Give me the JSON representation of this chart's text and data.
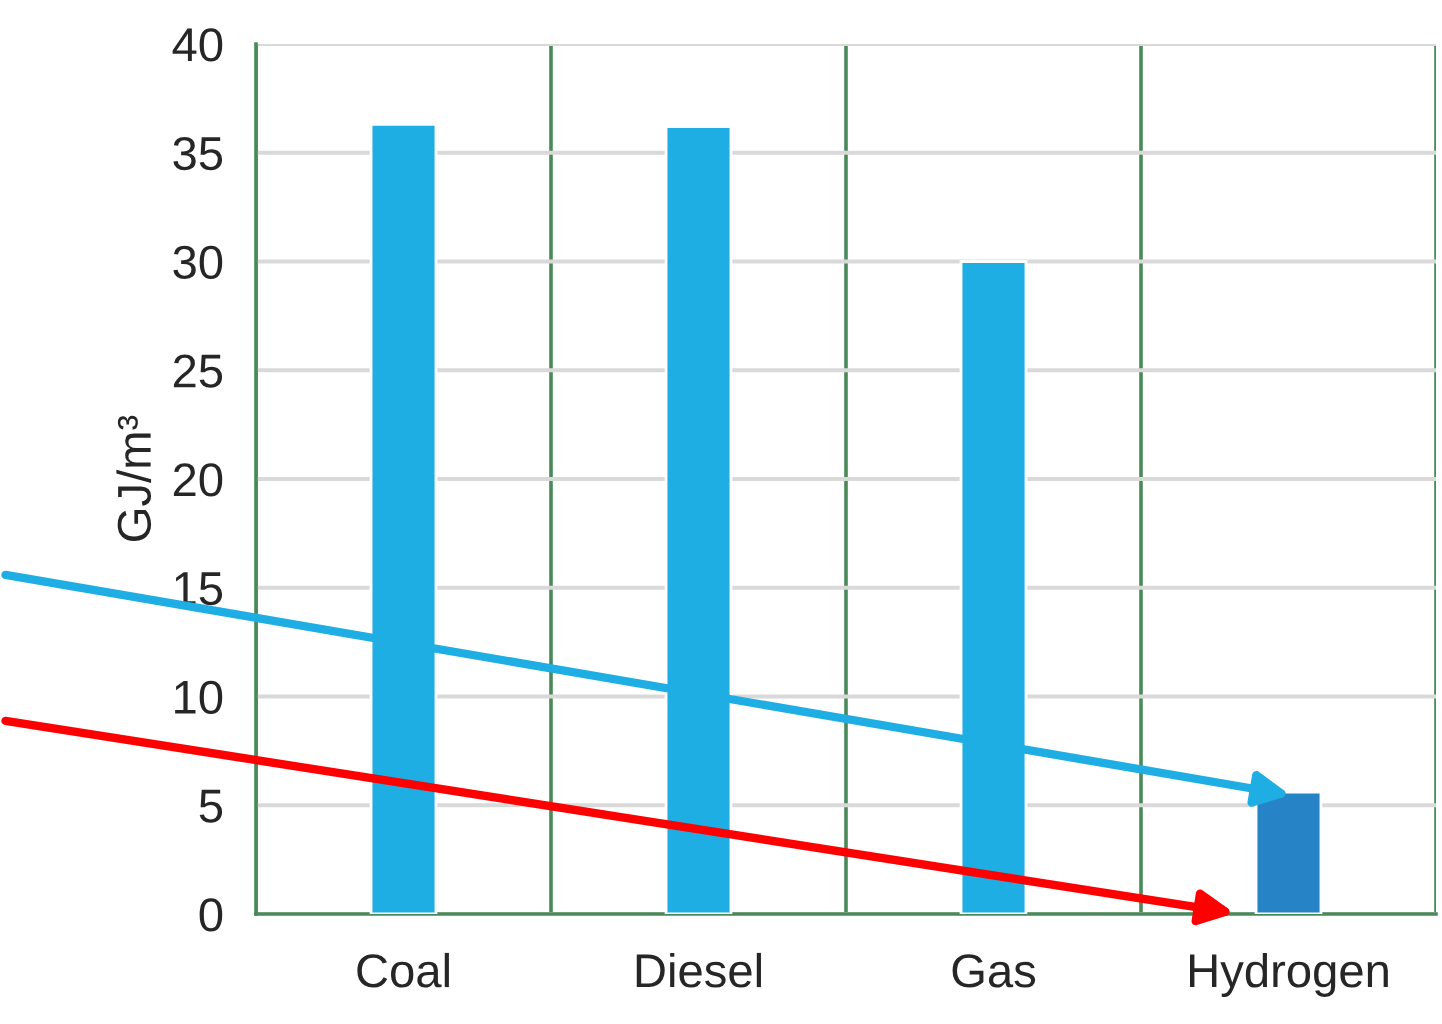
{
  "chart_data": {
    "type": "bar",
    "ylabel": "GJ/m³",
    "categories": [
      "Coal",
      "Diesel",
      "Gas",
      "Hydrogen"
    ],
    "values": [
      36.3,
      36.2,
      30.0,
      5.6
    ],
    "colors": [
      "#1faee3",
      "#1faee3",
      "#1faee3",
      "#2683c6"
    ],
    "ylim": [
      0,
      40
    ],
    "yticks": [
      0,
      5,
      10,
      15,
      20,
      25,
      30,
      35,
      40
    ],
    "grid": true,
    "legend": false
  }
}
